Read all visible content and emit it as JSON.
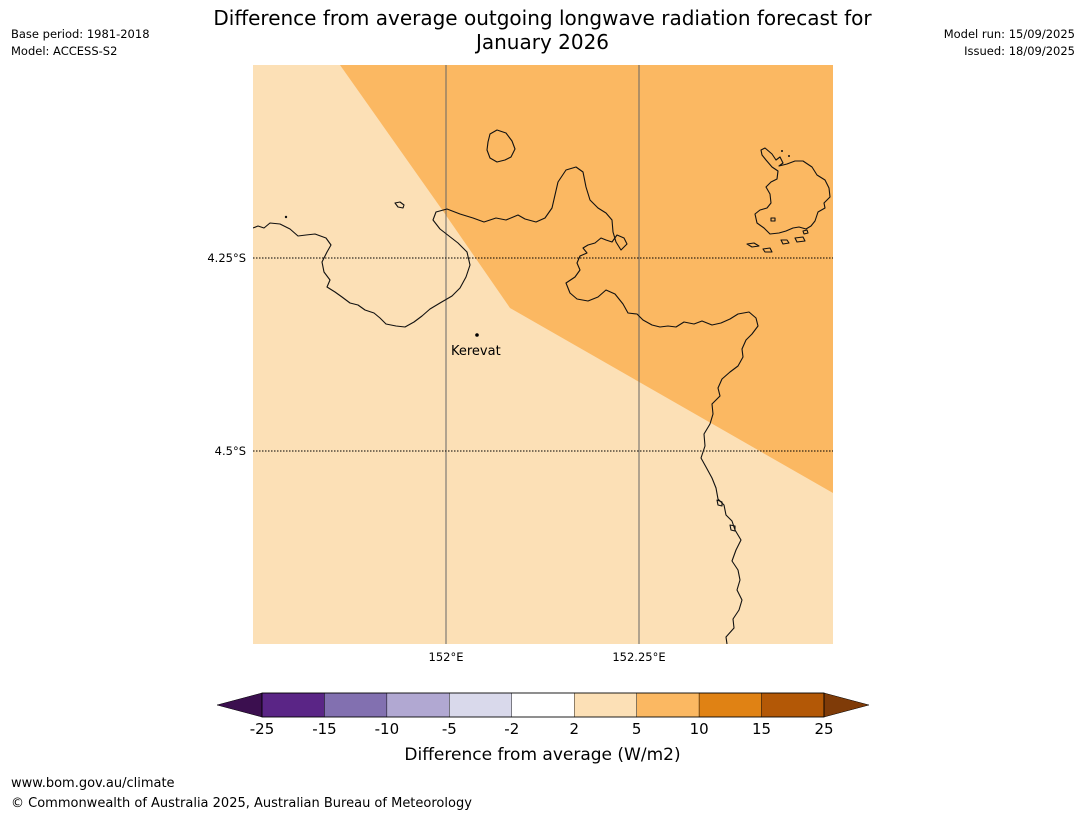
{
  "header": {
    "title_line1": "Difference from average outgoing longwave radiation forecast for",
    "title_line2": "January 2026",
    "base_period": "Base period: 1981-2018",
    "model": "Model: ACCESS-S2",
    "model_run": "Model run: 15/09/2025",
    "issued": "Issued: 18/09/2025"
  },
  "map": {
    "latitude_labels": [
      "4.25°S",
      "4.5°S"
    ],
    "longitude_labels": [
      "152°E",
      "152.25°E"
    ],
    "place_label": "Kerevat",
    "fill_colors": {
      "anomaly_2_to_5": "#fce0b6",
      "anomaly_5_to_10": "#fbb862"
    },
    "coastline_color": "#000000"
  },
  "colorbar": {
    "label": "Difference from average (W/m2)",
    "ticks": [
      "-25",
      "-15",
      "-10",
      "-5",
      "-2",
      "2",
      "5",
      "10",
      "15",
      "25"
    ],
    "colors": [
      "#3b0f4f",
      "#5a2586",
      "#8270b0",
      "#b1a8d2",
      "#d9d9eb",
      "#ffffff",
      "#fce0b6",
      "#fbb862",
      "#e08214",
      "#b35806",
      "#7f3b08"
    ]
  },
  "footer": {
    "website": "www.bom.gov.au/climate",
    "copyright": "© Commonwealth of Australia 2025, Australian Bureau of Meteorology"
  }
}
